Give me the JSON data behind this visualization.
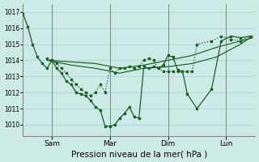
{
  "background_color": "#cceae6",
  "grid_color": "#aad4d0",
  "line_color": "#1a6020",
  "xlabel": "Pression niveau de la mer( hPa )",
  "ylim": [
    1009.3,
    1017.5
  ],
  "yticks": [
    1010,
    1011,
    1012,
    1013,
    1014,
    1015,
    1016,
    1017
  ],
  "xlim": [
    0,
    96
  ],
  "xtick_positions": [
    12,
    36,
    60,
    84
  ],
  "xtick_labels": [
    "Sam",
    "Mar",
    "Dim",
    "Lun"
  ],
  "vline_positions": [
    12,
    36,
    60,
    84
  ],
  "series_volatile1": {
    "x": [
      0,
      2,
      4,
      6,
      8,
      10,
      12,
      14,
      16,
      18,
      20,
      22,
      24,
      26,
      28,
      30,
      32,
      34,
      36,
      38,
      40,
      42,
      44,
      46,
      48,
      50,
      52,
      54,
      56,
      58,
      60,
      62,
      64,
      66,
      68,
      72,
      78,
      82,
      86,
      90,
      94
    ],
    "y": [
      1016.9,
      1016.1,
      1015.0,
      1014.2,
      1013.8,
      1013.5,
      1014.0,
      1013.5,
      1013.2,
      1012.7,
      1012.5,
      1012.0,
      1011.9,
      1011.8,
      1011.5,
      1011.1,
      1010.9,
      1009.9,
      1009.9,
      1010.0,
      1010.4,
      1010.7,
      1011.1,
      1010.5,
      1010.4,
      1013.6,
      1013.5,
      1013.6,
      1013.5,
      1013.7,
      1014.3,
      1014.2,
      1013.4,
      1013.3,
      1011.9,
      1011.0,
      1012.2,
      1015.2,
      1015.5,
      1015.4,
      1015.5
    ]
  },
  "series_volatile2": {
    "x": [
      10,
      12,
      14,
      16,
      18,
      20,
      22,
      24,
      26,
      28,
      30,
      32,
      34,
      36,
      38,
      40,
      42,
      44,
      46,
      48,
      50,
      52,
      54,
      56,
      58,
      60,
      62,
      64,
      66,
      68,
      70,
      72,
      78,
      82,
      86,
      90,
      94
    ],
    "y": [
      1014.1,
      1014.0,
      1013.8,
      1013.5,
      1013.2,
      1012.8,
      1012.5,
      1012.2,
      1012.0,
      1011.8,
      1012.0,
      1012.5,
      1012.0,
      1013.5,
      1013.2,
      1013.5,
      1013.5,
      1013.6,
      1013.5,
      1013.6,
      1014.0,
      1014.1,
      1014.0,
      1013.5,
      1013.3,
      1013.3,
      1013.3,
      1013.3,
      1013.3,
      1013.3,
      1013.3,
      1015.0,
      1015.2,
      1015.5,
      1015.3,
      1015.2,
      1015.5
    ]
  },
  "series_smooth1": {
    "x": [
      10,
      20,
      30,
      40,
      50,
      60,
      70,
      80,
      90,
      95
    ],
    "y": [
      1014.0,
      1013.9,
      1013.8,
      1013.5,
      1013.7,
      1014.0,
      1014.3,
      1014.8,
      1015.2,
      1015.4
    ]
  },
  "series_smooth2": {
    "x": [
      10,
      20,
      30,
      40,
      50,
      60,
      70,
      80,
      90,
      95
    ],
    "y": [
      1014.0,
      1013.7,
      1013.5,
      1013.2,
      1013.5,
      1013.6,
      1013.8,
      1014.2,
      1015.0,
      1015.5
    ]
  }
}
